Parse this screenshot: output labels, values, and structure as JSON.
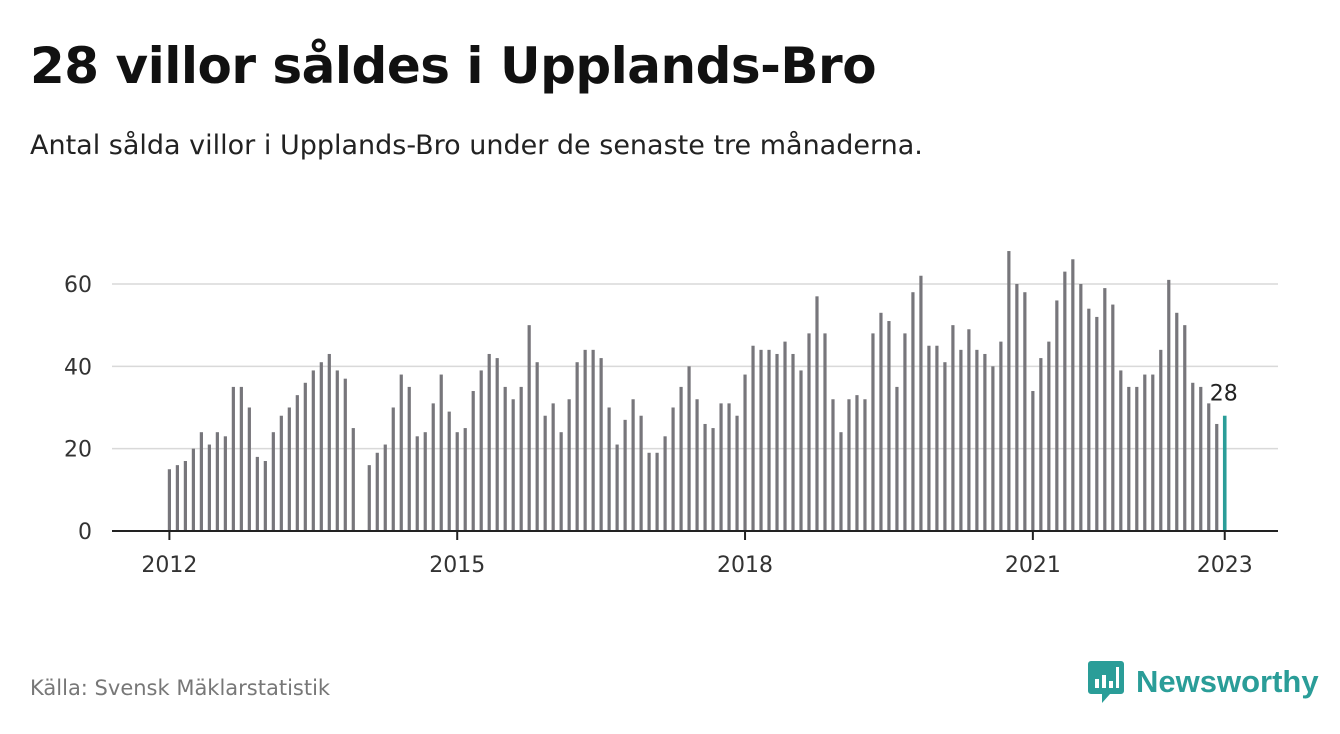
{
  "title": "28 villor såldes i Upplands-Bro",
  "subtitle": "Antal sålda villor i Upplands-Bro under de senaste tre månaderna.",
  "source": "Källa: Svensk Mäklarstatistik",
  "brand": {
    "name": "Newsworthy",
    "icon": "newsworthy-logo-icon",
    "color": "#2a9d98"
  },
  "chart_data": {
    "type": "bar",
    "start": "2012-01",
    "x_ticks": [
      "2012",
      "2015",
      "2018",
      "2021",
      "2023"
    ],
    "y_ticks": [
      0,
      20,
      40,
      60
    ],
    "ylim": [
      0,
      70
    ],
    "grid": true,
    "bar_color": "#77767b",
    "highlight_color": "#2a9d98",
    "highlight_label": "28",
    "values": [
      15,
      16,
      17,
      20,
      24,
      21,
      24,
      23,
      35,
      35,
      30,
      18,
      17,
      24,
      28,
      30,
      33,
      36,
      39,
      41,
      43,
      39,
      37,
      25,
      0,
      16,
      19,
      21,
      30,
      38,
      35,
      23,
      24,
      31,
      38,
      29,
      24,
      25,
      34,
      39,
      43,
      42,
      35,
      32,
      35,
      50,
      41,
      28,
      31,
      24,
      32,
      41,
      44,
      44,
      42,
      30,
      21,
      27,
      32,
      28,
      19,
      19,
      23,
      30,
      35,
      40,
      32,
      26,
      25,
      31,
      31,
      28,
      38,
      45,
      44,
      44,
      43,
      46,
      43,
      39,
      48,
      57,
      48,
      32,
      24,
      32,
      33,
      32,
      48,
      53,
      51,
      35,
      48,
      58,
      62,
      45,
      45,
      41,
      50,
      44,
      49,
      44,
      43,
      40,
      46,
      68,
      60,
      58,
      34,
      42,
      46,
      56,
      63,
      66,
      60,
      54,
      52,
      59,
      55,
      39,
      35,
      35,
      38,
      38,
      44,
      61,
      53,
      50,
      36,
      35,
      31,
      26,
      28
    ]
  }
}
